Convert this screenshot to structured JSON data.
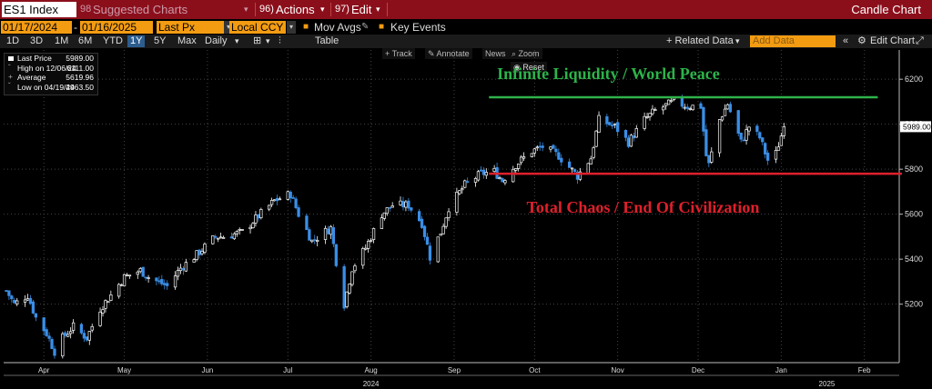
{
  "header": {
    "security": "ES1 Index",
    "suggested_code": "98",
    "suggested_label": "Suggested Charts",
    "actions_code": "96)",
    "actions_label": "Actions",
    "edit_code": "97)",
    "edit_label": "Edit",
    "title": "Candle Chart"
  },
  "controls": {
    "start_date": "01/17/2024",
    "end_date": "01/16/2025",
    "field": "Last Px",
    "currency": "Local CCY",
    "mov_avgs": "Mov Avgs",
    "key_events": "Key Events"
  },
  "ranges": [
    "1D",
    "3D",
    "1M",
    "6M",
    "YTD",
    "1Y",
    "5Y",
    "Max"
  ],
  "active_range": "1Y",
  "periodicity": "Daily",
  "table_label": "Table",
  "related_data": "+ Related Data",
  "add_data_placeholder": "Add Data",
  "edit_chart": "Edit Chart",
  "tools": {
    "track": "Track",
    "annotate": "Annotate",
    "news": "News",
    "zoom": "Zoom",
    "reset": "Reset"
  },
  "legend": {
    "last_price_label": "Last Price",
    "last_price": "5989.00",
    "high_label": "High on 12/06/24",
    "high": "6111.00",
    "avg_label": "Average",
    "avg": "5619.96",
    "low_label": "Low on 04/19/24",
    "low": "4963.50"
  },
  "colors": {
    "up": "#ffffff",
    "down": "#3a8ee6",
    "green": "#2db34a",
    "red": "#e0202c",
    "accent": "#f39c12",
    "header": "#8b0f1b"
  },
  "chart_data": {
    "type": "candlestick",
    "title": "",
    "ylim": [
      4940,
      6330
    ],
    "y_ticks": [
      5200,
      5400,
      5600,
      5800,
      6000,
      6200
    ],
    "x_ticks": [
      {
        "label": "Apr",
        "date": "2024-04-15"
      },
      {
        "label": "May",
        "date": "2024-05-15"
      },
      {
        "label": "Jun",
        "date": "2024-06-15"
      },
      {
        "label": "Jul",
        "date": "2024-07-15"
      },
      {
        "label": "Aug",
        "date": "2024-08-15"
      },
      {
        "label": "Sep",
        "date": "2024-09-15"
      },
      {
        "label": "Oct",
        "date": "2024-10-15"
      },
      {
        "label": "Nov",
        "date": "2024-11-15"
      },
      {
        "label": "Dec",
        "date": "2024-12-15"
      },
      {
        "label": "Jan",
        "date": "2025-01-15"
      },
      {
        "label": "Feb",
        "date": "2025-02-15"
      }
    ],
    "x_range": [
      "2024-03-31",
      "2025-02-28"
    ],
    "year_labels": [
      {
        "label": "2024",
        "date": "2024-08-15"
      },
      {
        "label": "2025",
        "date": "2025-02-01"
      }
    ],
    "last_price_tag": "5989.00",
    "last_price": 5989,
    "close_path": [
      {
        "date": "2024-04-01",
        "v": 5260
      },
      {
        "date": "2024-04-04",
        "v": 5200
      },
      {
        "date": "2024-04-09",
        "v": 5240
      },
      {
        "date": "2024-04-12",
        "v": 5140
      },
      {
        "date": "2024-04-16",
        "v": 5070
      },
      {
        "date": "2024-04-19",
        "v": 4990
      },
      {
        "date": "2024-04-22",
        "v": 5050
      },
      {
        "date": "2024-04-26",
        "v": 5100
      },
      {
        "date": "2024-05-01",
        "v": 5050
      },
      {
        "date": "2024-05-06",
        "v": 5180
      },
      {
        "date": "2024-05-10",
        "v": 5240
      },
      {
        "date": "2024-05-15",
        "v": 5320
      },
      {
        "date": "2024-05-21",
        "v": 5350
      },
      {
        "date": "2024-05-24",
        "v": 5320
      },
      {
        "date": "2024-05-31",
        "v": 5280
      },
      {
        "date": "2024-06-05",
        "v": 5360
      },
      {
        "date": "2024-06-11",
        "v": 5420
      },
      {
        "date": "2024-06-18",
        "v": 5500
      },
      {
        "date": "2024-06-21",
        "v": 5500
      },
      {
        "date": "2024-06-28",
        "v": 5520
      },
      {
        "date": "2024-07-03",
        "v": 5580
      },
      {
        "date": "2024-07-10",
        "v": 5660
      },
      {
        "date": "2024-07-16",
        "v": 5690
      },
      {
        "date": "2024-07-19",
        "v": 5600
      },
      {
        "date": "2024-07-24",
        "v": 5480
      },
      {
        "date": "2024-07-31",
        "v": 5540
      },
      {
        "date": "2024-08-02",
        "v": 5390
      },
      {
        "date": "2024-08-05",
        "v": 5200
      },
      {
        "date": "2024-08-08",
        "v": 5360
      },
      {
        "date": "2024-08-13",
        "v": 5450
      },
      {
        "date": "2024-08-19",
        "v": 5600
      },
      {
        "date": "2024-08-23",
        "v": 5640
      },
      {
        "date": "2024-08-29",
        "v": 5640
      },
      {
        "date": "2024-09-03",
        "v": 5560
      },
      {
        "date": "2024-09-06",
        "v": 5410
      },
      {
        "date": "2024-09-10",
        "v": 5520
      },
      {
        "date": "2024-09-13",
        "v": 5630
      },
      {
        "date": "2024-09-19",
        "v": 5730
      },
      {
        "date": "2024-09-25",
        "v": 5780
      },
      {
        "date": "2024-09-30",
        "v": 5790
      },
      {
        "date": "2024-10-03",
        "v": 5750
      },
      {
        "date": "2024-10-08",
        "v": 5820
      },
      {
        "date": "2024-10-14",
        "v": 5880
      },
      {
        "date": "2024-10-18",
        "v": 5900
      },
      {
        "date": "2024-10-24",
        "v": 5860
      },
      {
        "date": "2024-10-31",
        "v": 5770
      },
      {
        "date": "2024-11-05",
        "v": 5850
      },
      {
        "date": "2024-11-08",
        "v": 6020
      },
      {
        "date": "2024-11-14",
        "v": 5990
      },
      {
        "date": "2024-11-19",
        "v": 5920
      },
      {
        "date": "2024-11-25",
        "v": 6020
      },
      {
        "date": "2024-11-29",
        "v": 6060
      },
      {
        "date": "2024-12-06",
        "v": 6100
      },
      {
        "date": "2024-12-11",
        "v": 6080
      },
      {
        "date": "2024-12-16",
        "v": 6080
      },
      {
        "date": "2024-12-18",
        "v": 5860
      },
      {
        "date": "2024-12-19",
        "v": 5820
      },
      {
        "date": "2024-12-23",
        "v": 6020
      },
      {
        "date": "2024-12-26",
        "v": 6090
      },
      {
        "date": "2024-12-31",
        "v": 5920
      },
      {
        "date": "2025-01-03",
        "v": 5990
      },
      {
        "date": "2025-01-07",
        "v": 5940
      },
      {
        "date": "2025-01-10",
        "v": 5840
      },
      {
        "date": "2025-01-13",
        "v": 5870
      },
      {
        "date": "2025-01-16",
        "v": 5989
      }
    ],
    "annotations": [
      {
        "text": "Infinite Liquidity / World Peace",
        "level": 6120,
        "color": "#2db34a"
      },
      {
        "text": "Total Chaos / End Of Civilization",
        "level": 5780,
        "color": "#e0202c"
      }
    ]
  }
}
